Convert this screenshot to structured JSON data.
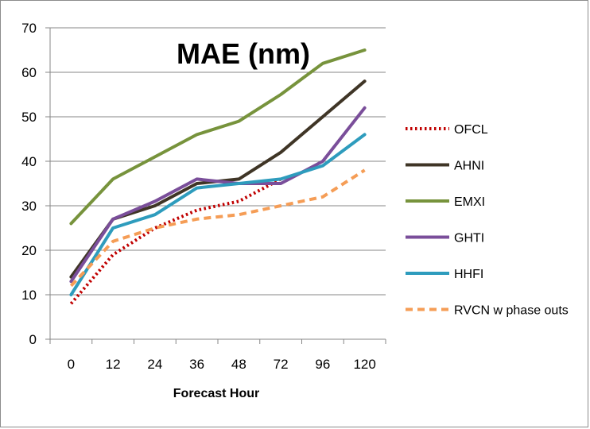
{
  "chart_data": {
    "type": "line",
    "title": "MAE (nm)",
    "xlabel": "Forecast Hour",
    "ylabel": "",
    "categories": [
      "0",
      "12",
      "24",
      "36",
      "48",
      "72",
      "96",
      "120"
    ],
    "ylim": [
      0,
      70
    ],
    "yticks": [
      0,
      10,
      20,
      30,
      40,
      50,
      60,
      70
    ],
    "grid": true,
    "legend": "right",
    "series": [
      {
        "name": "OFCL",
        "color": "#c00000",
        "dash": "dotted",
        "values": [
          8,
          19,
          25,
          29,
          31,
          36,
          null,
          null
        ]
      },
      {
        "name": "AHNI",
        "color": "#3f3526",
        "dash": "solid",
        "values": [
          14,
          27,
          30,
          35,
          36,
          42,
          50,
          58
        ]
      },
      {
        "name": "EMXI",
        "color": "#77933c",
        "dash": "solid",
        "values": [
          26,
          36,
          41,
          46,
          49,
          55,
          62,
          65
        ]
      },
      {
        "name": "GHTI",
        "color": "#7a4e9a",
        "dash": "solid",
        "values": [
          13,
          27,
          31,
          36,
          35,
          35,
          40,
          52
        ]
      },
      {
        "name": "HHFI",
        "color": "#2e9cbd",
        "dash": "solid",
        "values": [
          10,
          25,
          28,
          34,
          35,
          36,
          39,
          46
        ]
      },
      {
        "name": "RVCN w phase outs",
        "color": "#f59d56",
        "dash": "dashed",
        "values": [
          12,
          22,
          25,
          27,
          28,
          30,
          32,
          38
        ]
      }
    ]
  }
}
